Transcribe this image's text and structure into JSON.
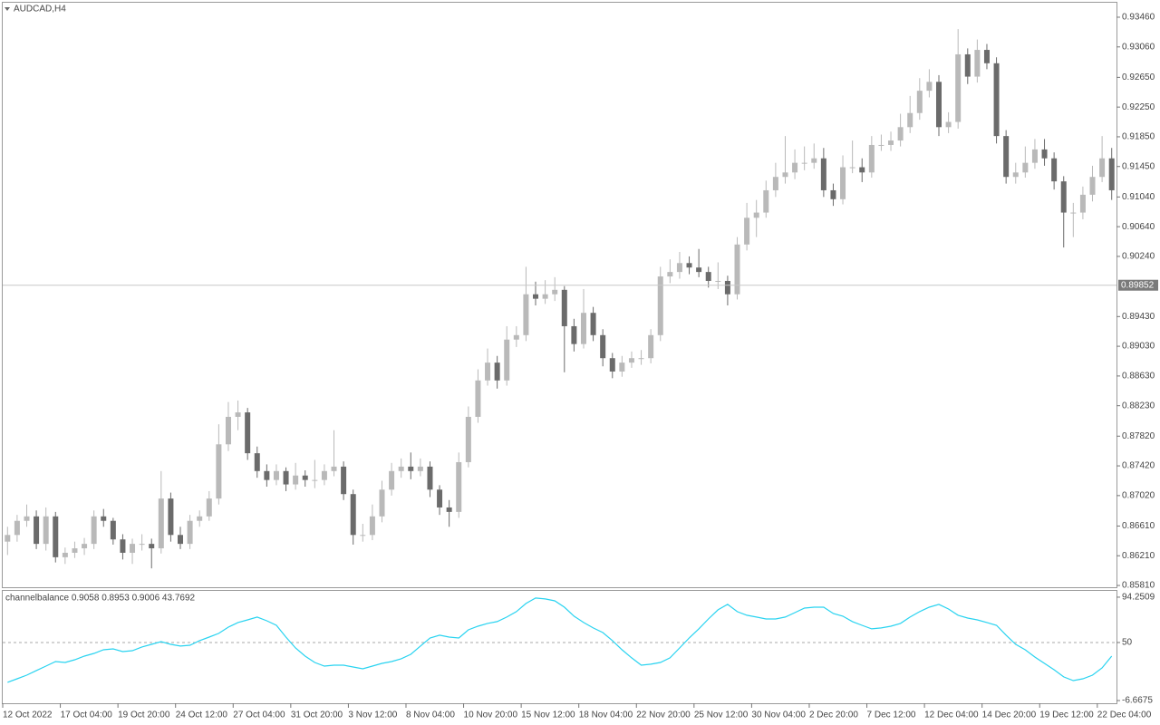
{
  "chart_data": [
    {
      "type": "candlestick",
      "title": "AUDCAD,H4",
      "up_color": "#b9b9b9",
      "down_color": "#6b6b6b",
      "ylim": [
        0.85786,
        0.93655
      ],
      "yticks": [
        {
          "value": 0.9346,
          "label": "0.93460"
        },
        {
          "value": 0.9306,
          "label": "0.93060"
        },
        {
          "value": 0.9265,
          "label": "0.92650"
        },
        {
          "value": 0.9225,
          "label": "0.92250"
        },
        {
          "value": 0.9185,
          "label": "0.91850"
        },
        {
          "value": 0.9145,
          "label": "0.91450"
        },
        {
          "value": 0.9104,
          "label": "0.91040"
        },
        {
          "value": 0.9064,
          "label": "0.90640"
        },
        {
          "value": 0.9024,
          "label": "0.90240"
        },
        {
          "value": 0.8943,
          "label": "0.89430"
        },
        {
          "value": 0.8903,
          "label": "0.89030"
        },
        {
          "value": 0.8863,
          "label": "0.88630"
        },
        {
          "value": 0.8823,
          "label": "0.88230"
        },
        {
          "value": 0.8782,
          "label": "0.87820"
        },
        {
          "value": 0.8742,
          "label": "0.87420"
        },
        {
          "value": 0.8702,
          "label": "0.87020"
        },
        {
          "value": 0.8661,
          "label": "0.86610"
        },
        {
          "value": 0.8621,
          "label": "0.86210"
        },
        {
          "value": 0.8581,
          "label": "0.85810"
        }
      ],
      "current_price": 0.89852,
      "categories": [
        "12 Oct 2022",
        null,
        null,
        null,
        null,
        null,
        "17 Oct 04:00",
        null,
        null,
        null,
        null,
        null,
        "19 Oct 20:00",
        null,
        null,
        null,
        null,
        null,
        "24 Oct 12:00",
        null,
        null,
        null,
        null,
        null,
        "27 Oct 04:00",
        null,
        null,
        null,
        null,
        null,
        "31 Oct 20:00",
        null,
        null,
        null,
        null,
        null,
        "3 Nov 12:00",
        null,
        null,
        null,
        null,
        null,
        "8 Nov 04:00",
        null,
        null,
        null,
        null,
        null,
        "10 Nov 20:00",
        null,
        null,
        null,
        null,
        null,
        "15 Nov 12:00",
        null,
        null,
        null,
        null,
        null,
        "18 Nov 04:00",
        null,
        null,
        null,
        null,
        null,
        "22 Nov 20:00",
        null,
        null,
        null,
        null,
        null,
        "25 Nov 12:00",
        null,
        null,
        null,
        null,
        null,
        "30 Nov 04:00",
        null,
        null,
        null,
        null,
        null,
        "2 Dec 20:00",
        null,
        null,
        null,
        null,
        null,
        "7 Dec 12:00",
        null,
        null,
        null,
        null,
        null,
        "12 Dec 04:00",
        null,
        null,
        null,
        null,
        null,
        "14 Dec 20:00",
        null,
        null,
        null,
        null,
        null,
        "19 Dec 12:00",
        null,
        null,
        null,
        null,
        null,
        "22 Dec 04:00",
        null
      ],
      "ohlc": [
        [
          0.864,
          0.866,
          0.8622,
          0.8649
        ],
        [
          0.8649,
          0.8676,
          0.864,
          0.8668
        ],
        [
          0.8668,
          0.869,
          0.866,
          0.8674
        ],
        [
          0.8674,
          0.8682,
          0.863,
          0.8637
        ],
        [
          0.8637,
          0.8686,
          0.8628,
          0.8674
        ],
        [
          0.8674,
          0.868,
          0.8612,
          0.8619
        ],
        [
          0.8619,
          0.8632,
          0.861,
          0.8625
        ],
        [
          0.8625,
          0.864,
          0.8618,
          0.8631
        ],
        [
          0.8631,
          0.8645,
          0.8622,
          0.8637
        ],
        [
          0.8637,
          0.8682,
          0.863,
          0.8674
        ],
        [
          0.8674,
          0.8684,
          0.866,
          0.8668
        ],
        [
          0.8668,
          0.8672,
          0.8636,
          0.8643
        ],
        [
          0.8643,
          0.865,
          0.8616,
          0.8625
        ],
        [
          0.8625,
          0.8644,
          0.861,
          0.8637
        ],
        [
          0.8637,
          0.865,
          0.8628,
          0.8637
        ],
        [
          0.8637,
          0.8644,
          0.8604,
          0.8631
        ],
        [
          0.8631,
          0.8735,
          0.8624,
          0.8698
        ],
        [
          0.8698,
          0.8706,
          0.864,
          0.8649
        ],
        [
          0.8649,
          0.866,
          0.863,
          0.8637
        ],
        [
          0.8637,
          0.8676,
          0.863,
          0.8668
        ],
        [
          0.8668,
          0.8682,
          0.866,
          0.8674
        ],
        [
          0.8674,
          0.8708,
          0.8668,
          0.8698
        ],
        [
          0.8698,
          0.8798,
          0.869,
          0.8771
        ],
        [
          0.8771,
          0.8828,
          0.8762,
          0.8808
        ],
        [
          0.8808,
          0.883,
          0.879,
          0.8814
        ],
        [
          0.8814,
          0.882,
          0.875,
          0.8759
        ],
        [
          0.8759,
          0.8768,
          0.8726,
          0.8735
        ],
        [
          0.8735,
          0.8744,
          0.8714,
          0.8723
        ],
        [
          0.8723,
          0.8744,
          0.8716,
          0.8735
        ],
        [
          0.8735,
          0.874,
          0.8708,
          0.8717
        ],
        [
          0.8717,
          0.8746,
          0.871,
          0.8729
        ],
        [
          0.8729,
          0.8736,
          0.8714,
          0.8723
        ],
        [
          0.8723,
          0.875,
          0.8712,
          0.8723
        ],
        [
          0.8723,
          0.8744,
          0.8716,
          0.8735
        ],
        [
          0.8735,
          0.879,
          0.8728,
          0.8741
        ],
        [
          0.8741,
          0.8748,
          0.8696,
          0.8704
        ],
        [
          0.8704,
          0.871,
          0.8636,
          0.8649
        ],
        [
          0.8649,
          0.8664,
          0.864,
          0.8649
        ],
        [
          0.8649,
          0.869,
          0.8642,
          0.8674
        ],
        [
          0.8674,
          0.8722,
          0.8666,
          0.871
        ],
        [
          0.871,
          0.8746,
          0.8702,
          0.8735
        ],
        [
          0.8735,
          0.8752,
          0.8726,
          0.8741
        ],
        [
          0.8741,
          0.876,
          0.8724,
          0.8735
        ],
        [
          0.8735,
          0.8752,
          0.8728,
          0.8741
        ],
        [
          0.8741,
          0.8748,
          0.87,
          0.871
        ],
        [
          0.871,
          0.8716,
          0.8676,
          0.8686
        ],
        [
          0.8686,
          0.8696,
          0.866,
          0.868
        ],
        [
          0.868,
          0.876,
          0.8672,
          0.8747
        ],
        [
          0.8747,
          0.8822,
          0.874,
          0.8808
        ],
        [
          0.8808,
          0.8872,
          0.88,
          0.8857
        ],
        [
          0.8857,
          0.89,
          0.885,
          0.8881
        ],
        [
          0.8881,
          0.889,
          0.8846,
          0.8857
        ],
        [
          0.8857,
          0.893,
          0.885,
          0.8912
        ],
        [
          0.8912,
          0.893,
          0.8902,
          0.8918
        ],
        [
          0.8918,
          0.901,
          0.891,
          0.8973
        ],
        [
          0.8973,
          0.899,
          0.8958,
          0.8967
        ],
        [
          0.8967,
          0.8992,
          0.896,
          0.8973
        ],
        [
          0.8973,
          0.8996,
          0.8964,
          0.8979
        ],
        [
          0.8979,
          0.8984,
          0.8868,
          0.893
        ],
        [
          0.893,
          0.894,
          0.8896,
          0.8906
        ],
        [
          0.8906,
          0.898,
          0.89,
          0.8948
        ],
        [
          0.8948,
          0.8956,
          0.891,
          0.8918
        ],
        [
          0.8918,
          0.8926,
          0.8876,
          0.8887
        ],
        [
          0.8887,
          0.8894,
          0.886,
          0.8869
        ],
        [
          0.8869,
          0.889,
          0.8862,
          0.8881
        ],
        [
          0.8881,
          0.8896,
          0.8874,
          0.8887
        ],
        [
          0.8887,
          0.8898,
          0.8878,
          0.8887
        ],
        [
          0.8887,
          0.8926,
          0.888,
          0.8918
        ],
        [
          0.8918,
          0.901,
          0.891,
          0.8997
        ],
        [
          0.8997,
          0.902,
          0.8988,
          0.9003
        ],
        [
          0.9003,
          0.903,
          0.8994,
          0.9015
        ],
        [
          0.9015,
          0.9024,
          0.9,
          0.9009
        ],
        [
          0.9009,
          0.9034,
          0.8996,
          0.9003
        ],
        [
          0.9003,
          0.901,
          0.8982,
          0.8991
        ],
        [
          0.8991,
          0.9016,
          0.898,
          0.8991
        ],
        [
          0.8991,
          0.8998,
          0.8958,
          0.8973
        ],
        [
          0.8973,
          0.905,
          0.8966,
          0.904
        ],
        [
          0.904,
          0.9096,
          0.9032,
          0.9076
        ],
        [
          0.9076,
          0.91,
          0.905,
          0.9083
        ],
        [
          0.9083,
          0.9126,
          0.9076,
          0.9113
        ],
        [
          0.9113,
          0.915,
          0.9104,
          0.9131
        ],
        [
          0.9131,
          0.9186,
          0.9122,
          0.9137
        ],
        [
          0.9137,
          0.9168,
          0.9128,
          0.915
        ],
        [
          0.915,
          0.9172,
          0.914,
          0.915
        ],
        [
          0.915,
          0.9176,
          0.9142,
          0.9156
        ],
        [
          0.9156,
          0.917,
          0.9104,
          0.9113
        ],
        [
          0.9113,
          0.9122,
          0.9092,
          0.9101
        ],
        [
          0.9101,
          0.916,
          0.9094,
          0.9144
        ],
        [
          0.9144,
          0.918,
          0.9136,
          0.9144
        ],
        [
          0.9144,
          0.9156,
          0.9124,
          0.9137
        ],
        [
          0.9137,
          0.9186,
          0.913,
          0.9174
        ],
        [
          0.9174,
          0.9188,
          0.9166,
          0.9174
        ],
        [
          0.9174,
          0.9192,
          0.9166,
          0.918
        ],
        [
          0.918,
          0.9216,
          0.9172,
          0.9198
        ],
        [
          0.9198,
          0.924,
          0.919,
          0.9217
        ],
        [
          0.9217,
          0.9264,
          0.9208,
          0.9247
        ],
        [
          0.9247,
          0.9276,
          0.9238,
          0.9259
        ],
        [
          0.9259,
          0.9268,
          0.9186,
          0.9198
        ],
        [
          0.9198,
          0.9218,
          0.919,
          0.9205
        ],
        [
          0.9205,
          0.933,
          0.9196,
          0.9296
        ],
        [
          0.9296,
          0.9304,
          0.9256,
          0.9266
        ],
        [
          0.9266,
          0.9316,
          0.9258,
          0.9302
        ],
        [
          0.9302,
          0.931,
          0.9276,
          0.9284
        ],
        [
          0.9284,
          0.9292,
          0.9176,
          0.9186
        ],
        [
          0.9186,
          0.9194,
          0.9122,
          0.9131
        ],
        [
          0.9131,
          0.915,
          0.9122,
          0.9137
        ],
        [
          0.9137,
          0.9172,
          0.913,
          0.915
        ],
        [
          0.915,
          0.9182,
          0.9142,
          0.9168
        ],
        [
          0.9168,
          0.9182,
          0.9146,
          0.9156
        ],
        [
          0.9156,
          0.9164,
          0.9114,
          0.9125
        ],
        [
          0.9125,
          0.9132,
          0.9036,
          0.9083
        ],
        [
          0.9083,
          0.9096,
          0.905,
          0.9083
        ],
        [
          0.9083,
          0.9118,
          0.9074,
          0.9107
        ],
        [
          0.9107,
          0.9146,
          0.9098,
          0.9131
        ],
        [
          0.9131,
          0.9186,
          0.9124,
          0.9156
        ],
        [
          0.9156,
          0.917,
          0.91,
          0.9113
        ]
      ]
    },
    {
      "type": "line",
      "title": "channelbalance 0.9058 0.8953 0.9006 43.7692",
      "color": "#29d3f0",
      "ylim": [
        -9.3,
        100.4
      ],
      "yticks": [
        94.2509,
        50,
        -6.6675
      ],
      "levels": [
        50
      ],
      "values": [
        11.1,
        14.6,
        18.1,
        22.6,
        27.0,
        31.4,
        30.5,
        33.2,
        36.7,
        39.4,
        42.9,
        43.8,
        41.1,
        42.0,
        45.6,
        48.2,
        50.9,
        48.2,
        46.5,
        47.3,
        51.8,
        55.3,
        58.9,
        65.0,
        69.5,
        72.1,
        74.8,
        71.2,
        66.8,
        55.3,
        44.7,
        36.7,
        30.5,
        27.0,
        27.9,
        27.9,
        26.1,
        24.3,
        27.0,
        29.6,
        31.4,
        34.1,
        38.5,
        46.5,
        54.4,
        57.1,
        55.3,
        54.4,
        62.4,
        65.9,
        68.6,
        70.4,
        74.8,
        80.1,
        88.1,
        93.4,
        92.5,
        90.7,
        84.5,
        75.7,
        69.5,
        64.2,
        59.7,
        51.8,
        42.9,
        35.0,
        27.9,
        28.8,
        30.5,
        35.0,
        44.7,
        54.4,
        63.3,
        73.0,
        81.9,
        87.2,
        80.1,
        76.6,
        74.8,
        73.0,
        73.0,
        74.8,
        79.2,
        83.6,
        84.5,
        84.5,
        78.3,
        75.7,
        70.4,
        66.8,
        63.3,
        64.2,
        65.9,
        68.6,
        74.8,
        80.1,
        84.5,
        87.2,
        82.7,
        76.6,
        73.9,
        72.1,
        69.5,
        66.8,
        57.1,
        48.2,
        42.9,
        35.8,
        29.6,
        23.4,
        16.4,
        12.8,
        14.6,
        18.1,
        25.2,
        36.7
      ]
    }
  ]
}
